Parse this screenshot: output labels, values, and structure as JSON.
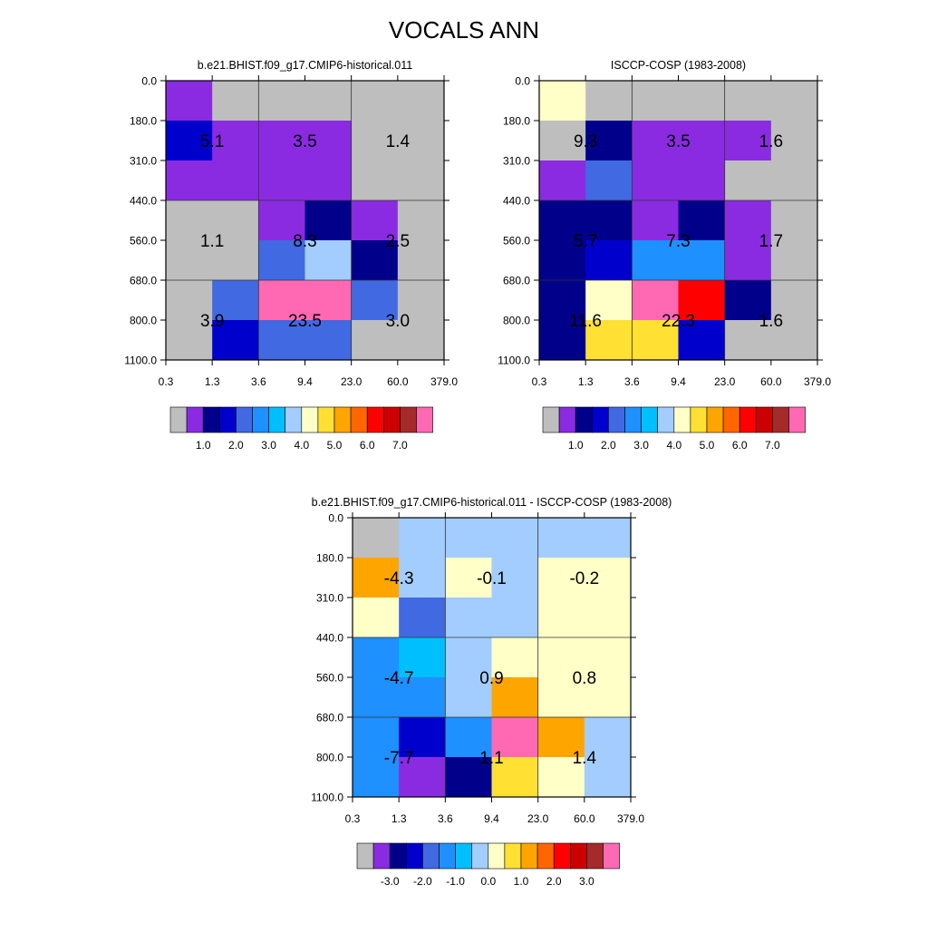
{
  "figure": {
    "title": "VOCALS ANN"
  },
  "chart_data": [
    {
      "type": "heatmap",
      "title": "b.e21.BHIST.f09_g17.CMIP6-historical.011",
      "x_ticks": [
        "0.3",
        "1.3",
        "3.6",
        "9.4",
        "23.0",
        "60.0",
        "379.0"
      ],
      "y_ticks": [
        "0.0",
        "180.0",
        "310.0",
        "440.0",
        "560.0",
        "680.0",
        "800.0",
        "1100.0"
      ],
      "cell_colors": [
        [
          "#8A2BE2",
          "#BEBEBE",
          "#BEBEBE",
          "#BEBEBE",
          "#BEBEBE",
          "#BEBEBE"
        ],
        [
          "#0000CD",
          "#8A2BE2",
          "#8A2BE2",
          "#8A2BE2",
          "#BEBEBE",
          "#BEBEBE"
        ],
        [
          "#8A2BE2",
          "#8A2BE2",
          "#8A2BE2",
          "#8A2BE2",
          "#BEBEBE",
          "#BEBEBE"
        ],
        [
          "#BEBEBE",
          "#BEBEBE",
          "#8A2BE2",
          "#00008B",
          "#8A2BE2",
          "#BEBEBE"
        ],
        [
          "#BEBEBE",
          "#BEBEBE",
          "#4169E1",
          "#A2CDFE",
          "#00008B",
          "#BEBEBE"
        ],
        [
          "#BEBEBE",
          "#4169E1",
          "#FF69B4",
          "#FF69B4",
          "#4169E1",
          "#BEBEBE"
        ],
        [
          "#BEBEBE",
          "#0000CD",
          "#4169E1",
          "#4169E1",
          "#BEBEBE",
          "#BEBEBE"
        ]
      ],
      "block_values": [
        [
          "5.1",
          "3.5",
          "1.4"
        ],
        [
          "1.1",
          "8.3",
          "2.5"
        ],
        [
          "3.9",
          "23.5",
          "3.0"
        ]
      ],
      "colorbar": {
        "colors": [
          "#BEBEBE",
          "#8A2BE2",
          "#00008B",
          "#0000CD",
          "#4169E1",
          "#1E90FF",
          "#00BFFF",
          "#A2CDFE",
          "#FFFFC8",
          "#FFE033",
          "#FFA500",
          "#FF6600",
          "#FF0000",
          "#CD0000",
          "#A52A2A",
          "#FF69B4"
        ],
        "labels": [
          "1.0",
          "2.0",
          "3.0",
          "4.0",
          "5.0",
          "6.0",
          "7.0"
        ]
      }
    },
    {
      "type": "heatmap",
      "title": "ISCCP-COSP (1983-2008)",
      "x_ticks": [
        "0.3",
        "1.3",
        "3.6",
        "9.4",
        "23.0",
        "60.0",
        "379.0"
      ],
      "y_ticks": [
        "0.0",
        "180.0",
        "310.0",
        "440.0",
        "560.0",
        "680.0",
        "800.0",
        "1100.0"
      ],
      "cell_colors": [
        [
          "#FFFFC8",
          "#BEBEBE",
          "#BEBEBE",
          "#BEBEBE",
          "#BEBEBE",
          "#BEBEBE"
        ],
        [
          "#BEBEBE",
          "#00008B",
          "#8A2BE2",
          "#8A2BE2",
          "#8A2BE2",
          "#BEBEBE"
        ],
        [
          "#8A2BE2",
          "#4169E1",
          "#8A2BE2",
          "#8A2BE2",
          "#BEBEBE",
          "#BEBEBE"
        ],
        [
          "#00008B",
          "#00008B",
          "#8A2BE2",
          "#00008B",
          "#8A2BE2",
          "#BEBEBE"
        ],
        [
          "#00008B",
          "#0000CD",
          "#1E90FF",
          "#1E90FF",
          "#8A2BE2",
          "#BEBEBE"
        ],
        [
          "#00008B",
          "#FFFFC8",
          "#FF69B4",
          "#FF0000",
          "#00008B",
          "#BEBEBE"
        ],
        [
          "#00008B",
          "#FFE033",
          "#FFE033",
          "#0000CD",
          "#BEBEBE",
          "#BEBEBE"
        ]
      ],
      "block_values": [
        [
          "9.3",
          "3.5",
          "1.6"
        ],
        [
          "5.7",
          "7.3",
          "1.7"
        ],
        [
          "11.6",
          "22.3",
          "1.6"
        ]
      ],
      "colorbar": {
        "colors": [
          "#BEBEBE",
          "#8A2BE2",
          "#00008B",
          "#0000CD",
          "#4169E1",
          "#1E90FF",
          "#00BFFF",
          "#A2CDFE",
          "#FFFFC8",
          "#FFE033",
          "#FFA500",
          "#FF6600",
          "#FF0000",
          "#CD0000",
          "#A52A2A",
          "#FF69B4"
        ],
        "labels": [
          "1.0",
          "2.0",
          "3.0",
          "4.0",
          "5.0",
          "6.0",
          "7.0"
        ]
      }
    },
    {
      "type": "heatmap",
      "title": "b.e21.BHIST.f09_g17.CMIP6-historical.011 - ISCCP-COSP (1983-2008)",
      "x_ticks": [
        "0.3",
        "1.3",
        "3.6",
        "9.4",
        "23.0",
        "60.0",
        "379.0"
      ],
      "y_ticks": [
        "0.0",
        "180.0",
        "310.0",
        "440.0",
        "560.0",
        "680.0",
        "800.0",
        "1100.0"
      ],
      "cell_colors": [
        [
          "#BEBEBE",
          "#A2CDFE",
          "#A2CDFE",
          "#A2CDFE",
          "#A2CDFE",
          "#A2CDFE"
        ],
        [
          "#FFA500",
          "#A2CDFE",
          "#FFFFC8",
          "#A2CDFE",
          "#FFFFC8",
          "#FFFFC8"
        ],
        [
          "#FFFFC8",
          "#4169E1",
          "#A2CDFE",
          "#A2CDFE",
          "#FFFFC8",
          "#FFFFC8"
        ],
        [
          "#1E90FF",
          "#00BFFF",
          "#A2CDFE",
          "#FFFFC8",
          "#FFFFC8",
          "#FFFFC8"
        ],
        [
          "#1E90FF",
          "#1E90FF",
          "#A2CDFE",
          "#FFA500",
          "#FFFFC8",
          "#FFFFC8"
        ],
        [
          "#1E90FF",
          "#0000CD",
          "#1E90FF",
          "#FF69B4",
          "#FFA500",
          "#A2CDFE"
        ],
        [
          "#1E90FF",
          "#8A2BE2",
          "#00008B",
          "#FFE033",
          "#FFFFC8",
          "#A2CDFE"
        ]
      ],
      "block_values": [
        [
          "-4.3",
          "-0.1",
          "-0.2"
        ],
        [
          "-4.7",
          "0.9",
          "0.8"
        ],
        [
          "-7.7",
          "1.1",
          "1.4"
        ]
      ],
      "colorbar": {
        "colors": [
          "#BEBEBE",
          "#8A2BE2",
          "#00008B",
          "#0000CD",
          "#4169E1",
          "#1E90FF",
          "#00BFFF",
          "#A2CDFE",
          "#FFFFC8",
          "#FFE033",
          "#FFA500",
          "#FF6600",
          "#FF0000",
          "#CD0000",
          "#A52A2A",
          "#FF69B4"
        ],
        "labels": [
          "-3.0",
          "-2.0",
          "-1.0",
          "0.0",
          "1.0",
          "2.0",
          "3.0"
        ]
      }
    }
  ]
}
